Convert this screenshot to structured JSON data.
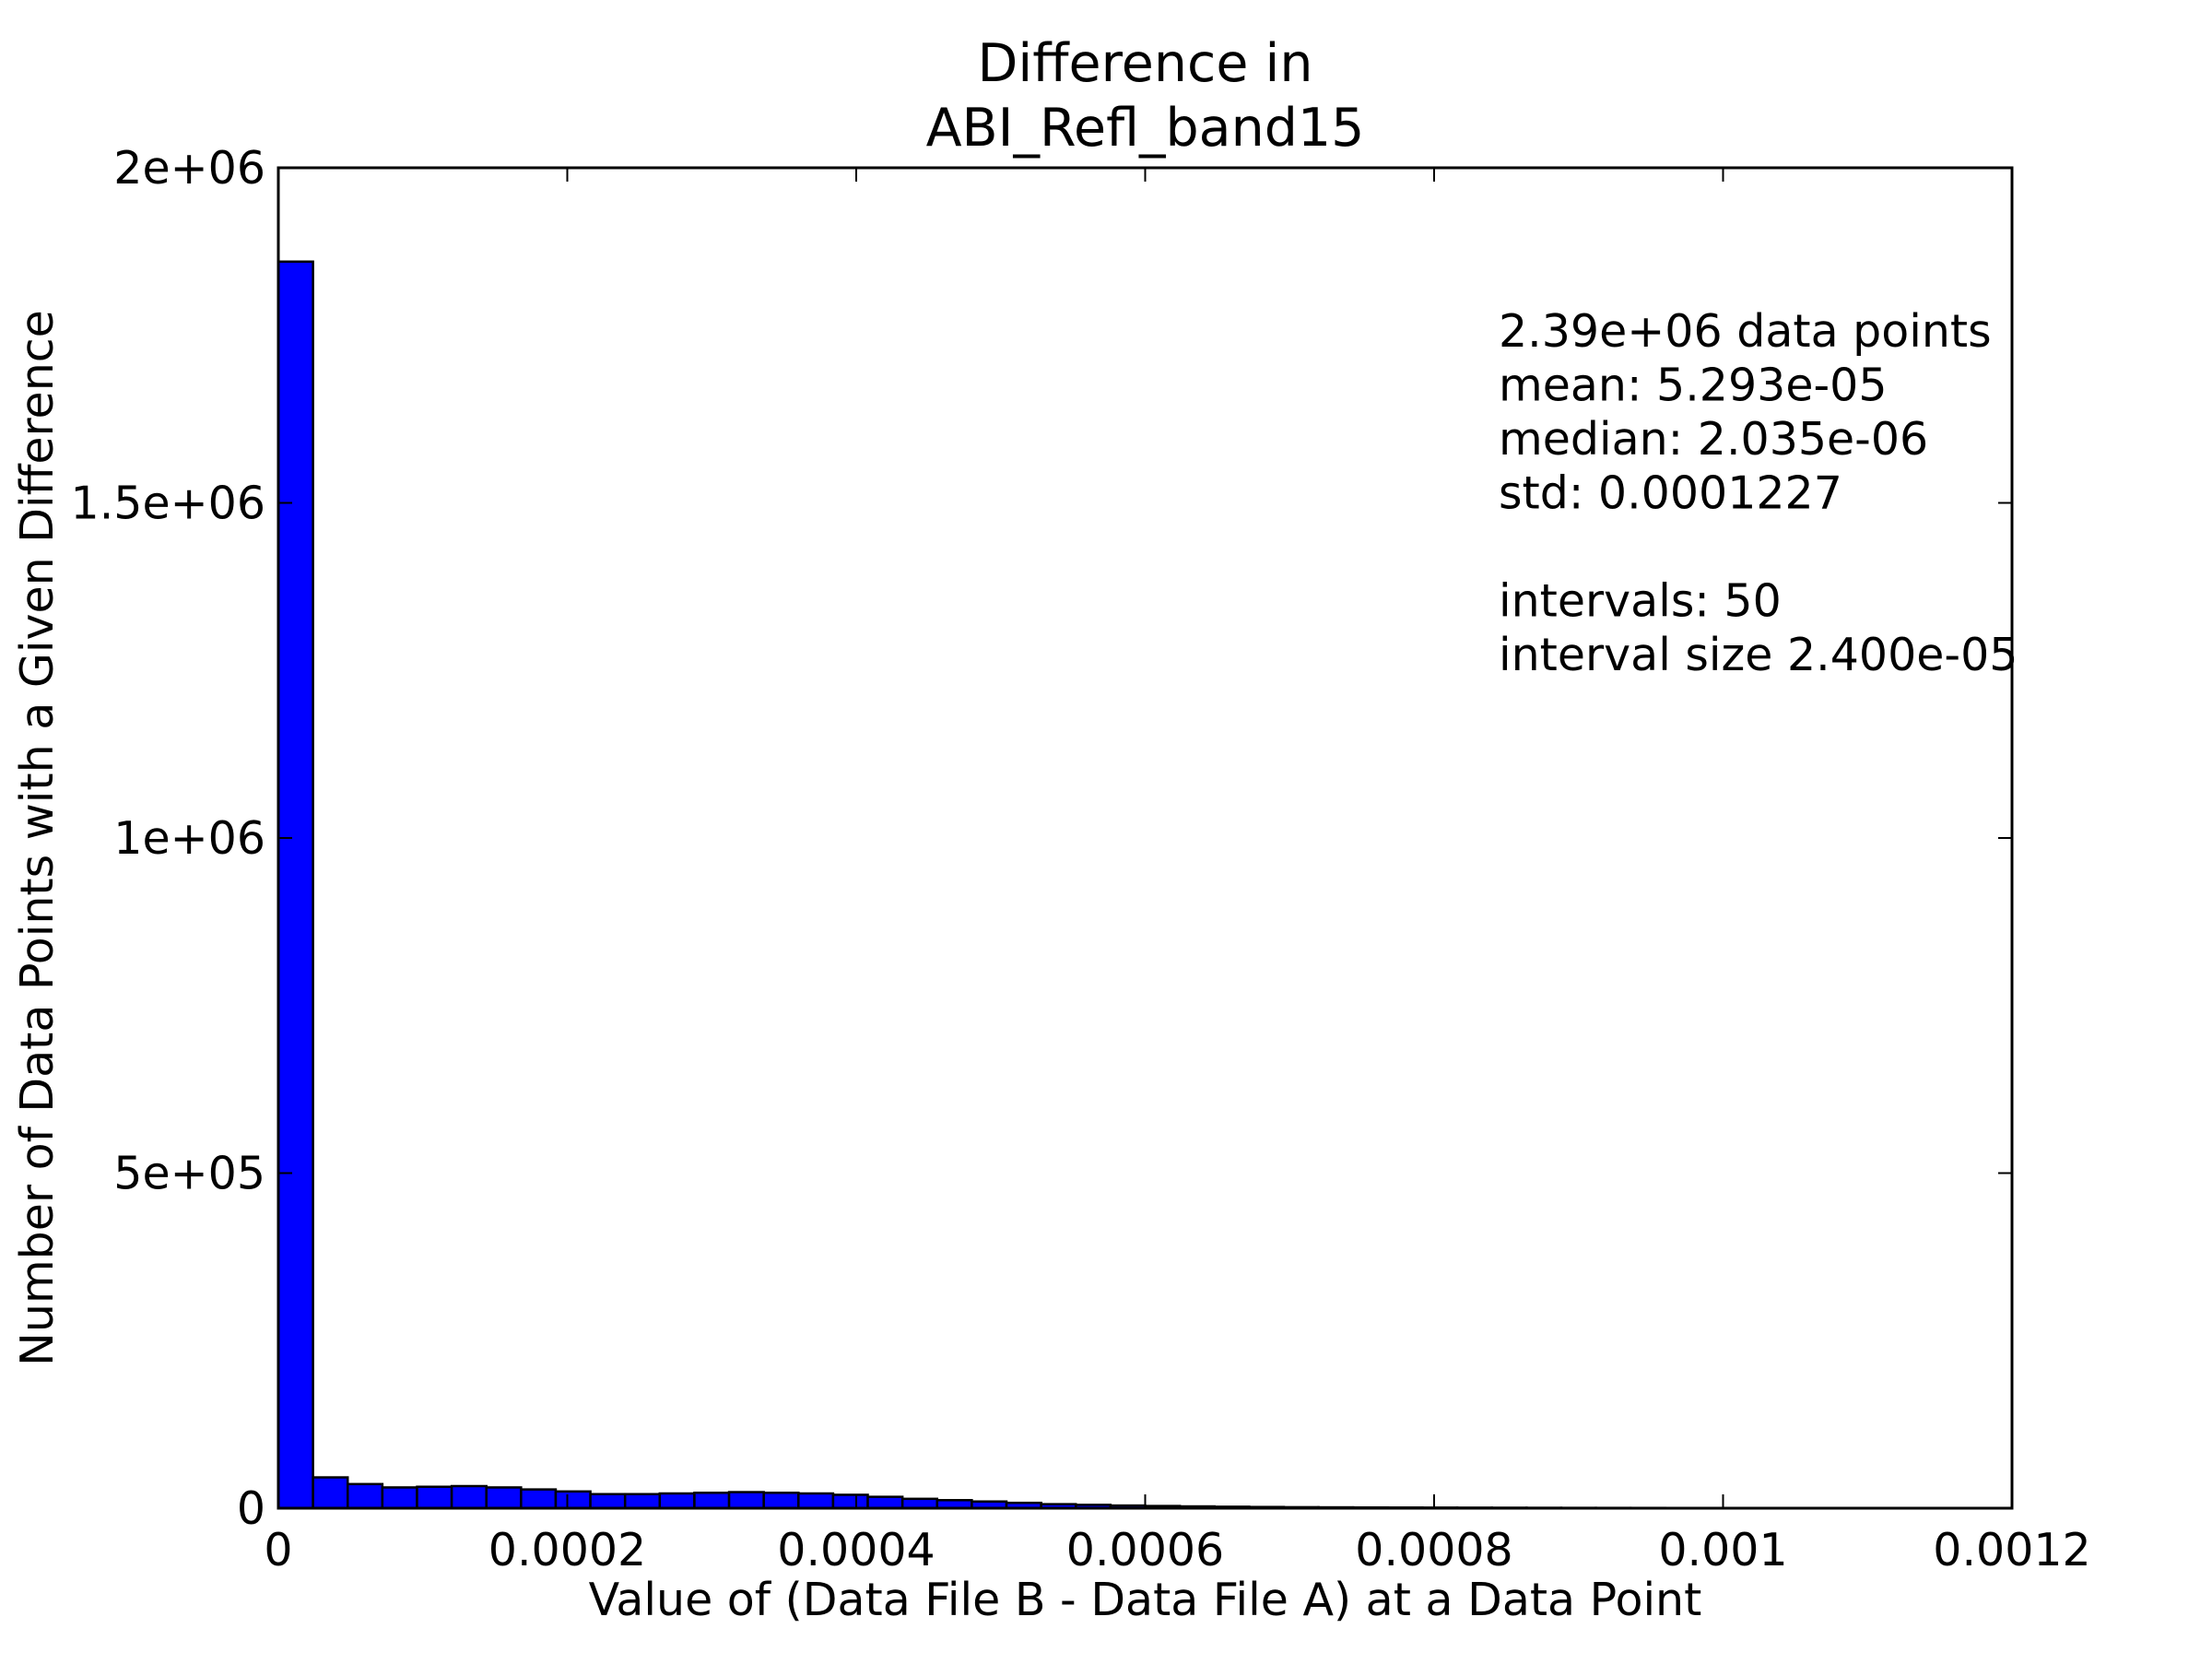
{
  "chart_data": {
    "type": "bar",
    "title": [
      "Difference in",
      "ABI_Refl_band15"
    ],
    "xlabel": "Value of (Data File B - Data File A) at a Data Point",
    "ylabel": "Number of Data Points with a Given Difference",
    "xlim": [
      0,
      0.0012
    ],
    "ylim": [
      0,
      2000000
    ],
    "xticks": [
      {
        "value": 0,
        "label": "0"
      },
      {
        "value": 0.0002,
        "label": "0.0002"
      },
      {
        "value": 0.0004,
        "label": "0.0004"
      },
      {
        "value": 0.0006,
        "label": "0.0006"
      },
      {
        "value": 0.0008,
        "label": "0.0008"
      },
      {
        "value": 0.001,
        "label": "0.001"
      },
      {
        "value": 0.0012,
        "label": "0.0012"
      }
    ],
    "yticks": [
      {
        "value": 0,
        "label": "0"
      },
      {
        "value": 500000,
        "label": "5e+05"
      },
      {
        "value": 1000000,
        "label": "1e+06"
      },
      {
        "value": 1500000,
        "label": "1.5e+06"
      },
      {
        "value": 2000000,
        "label": "2e+06"
      }
    ],
    "bin_start": 0,
    "bin_width": 2.4e-05,
    "values": [
      1860000,
      46000,
      36000,
      31000,
      32000,
      33000,
      31000,
      28000,
      25000,
      21000,
      21000,
      22000,
      23000,
      24000,
      23000,
      22000,
      20000,
      17000,
      14000,
      12000,
      10000,
      8000,
      6000,
      5000,
      4000,
      3300,
      2700,
      2200,
      1800,
      1500,
      1300,
      1100,
      1000,
      900,
      800,
      700,
      600,
      500,
      450,
      400,
      300,
      250,
      200,
      150,
      120,
      100,
      80,
      60,
      40,
      20
    ],
    "bar_color": "#0000ff",
    "grid": false,
    "annotation_lines": [
      "2.39e+06 data points",
      "mean: 5.293e-05",
      "median: 2.035e-06",
      "std: 0.0001227",
      "",
      "intervals: 50",
      "interval size 2.400e-05"
    ]
  }
}
